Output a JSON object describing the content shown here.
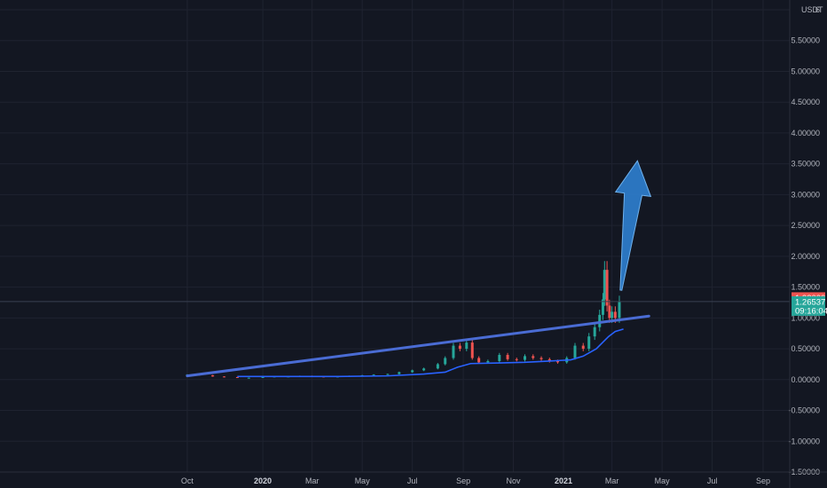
{
  "chart_data": {
    "type": "line",
    "price_axis": {
      "unit_label": "USDT",
      "tick_labels": [
        "6",
        "5.50000",
        "5.00000",
        "4.50000",
        "4.00000",
        "3.50000",
        "3.00000",
        "2.50000",
        "2.00000",
        "1.50000",
        "1.00000",
        "0.50000",
        "0.00000",
        "-0.50000",
        "-1.00000",
        "-1.50000"
      ],
      "ylim": [
        -1.5,
        6
      ]
    },
    "time_axis": {
      "tick_labels": [
        {
          "label": "Oct",
          "date": "2019-10",
          "bold": false
        },
        {
          "label": "2020",
          "date": "2020-01",
          "bold": true
        },
        {
          "label": "Mar",
          "date": "2020-03",
          "bold": false
        },
        {
          "label": "May",
          "date": "2020-05",
          "bold": false
        },
        {
          "label": "Jul",
          "date": "2020-07",
          "bold": false
        },
        {
          "label": "Sep",
          "date": "2020-09",
          "bold": false
        },
        {
          "label": "Nov",
          "date": "2020-11",
          "bold": false
        },
        {
          "label": "2021",
          "date": "2021-01",
          "bold": true
        },
        {
          "label": "Mar",
          "date": "2021-03",
          "bold": false
        },
        {
          "label": "May",
          "date": "2021-05",
          "bold": false
        },
        {
          "label": "Jul",
          "date": "2021-07",
          "bold": false
        },
        {
          "label": "Sep",
          "date": "2021-09",
          "bold": false
        }
      ]
    },
    "series": [
      {
        "type": "candles",
        "points": [
          [
            "2019-10-01",
            0.08
          ],
          [
            "2019-10-15",
            0.07
          ],
          [
            "2019-11-01",
            0.05
          ],
          [
            "2019-11-15",
            0.04
          ],
          [
            "2019-12-01",
            0.03
          ],
          [
            "2019-12-15",
            0.03
          ],
          [
            "2020-01-01",
            0.04
          ],
          [
            "2020-01-15",
            0.05
          ],
          [
            "2020-02-01",
            0.05
          ],
          [
            "2020-02-15",
            0.06
          ],
          [
            "2020-03-01",
            0.05
          ],
          [
            "2020-03-15",
            0.04
          ],
          [
            "2020-04-01",
            0.05
          ],
          [
            "2020-04-15",
            0.06
          ],
          [
            "2020-05-01",
            0.07
          ],
          [
            "2020-05-15",
            0.08
          ],
          [
            "2020-06-01",
            0.09
          ],
          [
            "2020-06-15",
            0.12
          ],
          [
            "2020-07-01",
            0.15
          ],
          [
            "2020-07-15",
            0.18
          ],
          [
            "2020-08-01",
            0.25
          ],
          [
            "2020-08-10",
            0.35
          ],
          [
            "2020-08-20",
            0.55
          ],
          [
            "2020-08-28",
            0.5
          ],
          [
            "2020-09-05",
            0.6
          ],
          [
            "2020-09-12",
            0.35
          ],
          [
            "2020-09-20",
            0.28
          ],
          [
            "2020-10-01",
            0.3
          ],
          [
            "2020-10-15",
            0.4
          ],
          [
            "2020-10-25",
            0.33
          ],
          [
            "2020-11-05",
            0.32
          ],
          [
            "2020-11-15",
            0.38
          ],
          [
            "2020-11-25",
            0.35
          ],
          [
            "2020-12-05",
            0.33
          ],
          [
            "2020-12-15",
            0.3
          ],
          [
            "2020-12-25",
            0.28
          ],
          [
            "2021-01-05",
            0.35
          ],
          [
            "2021-01-15",
            0.55
          ],
          [
            "2021-01-25",
            0.5
          ],
          [
            "2021-02-01",
            0.7
          ],
          [
            "2021-02-08",
            0.85
          ],
          [
            "2021-02-14",
            1.05
          ],
          [
            "2021-02-18",
            1.3
          ],
          [
            "2021-02-20",
            1.78
          ],
          [
            "2021-02-23",
            1.2
          ],
          [
            "2021-02-26",
            1.0
          ],
          [
            "2021-03-01",
            1.1
          ],
          [
            "2021-03-05",
            1.0
          ],
          [
            "2021-03-10",
            1.26
          ]
        ]
      },
      {
        "type": "moving-average",
        "points": [
          [
            "2019-12-01",
            0.05
          ],
          [
            "2020-02-01",
            0.05
          ],
          [
            "2020-04-01",
            0.05
          ],
          [
            "2020-06-01",
            0.06
          ],
          [
            "2020-07-15",
            0.09
          ],
          [
            "2020-08-10",
            0.12
          ],
          [
            "2020-08-25",
            0.2
          ],
          [
            "2020-09-10",
            0.26
          ],
          [
            "2020-10-15",
            0.27
          ],
          [
            "2020-11-15",
            0.28
          ],
          [
            "2020-12-15",
            0.3
          ],
          [
            "2021-01-10",
            0.32
          ],
          [
            "2021-01-25",
            0.38
          ],
          [
            "2021-02-10",
            0.5
          ],
          [
            "2021-02-25",
            0.7
          ],
          [
            "2021-03-05",
            0.78
          ],
          [
            "2021-03-15",
            0.82
          ]
        ]
      }
    ],
    "trendline": {
      "from": [
        "2019-10-01",
        0.06
      ],
      "to": [
        "2021-04-15",
        1.03
      ],
      "color": "#4a6cd4"
    },
    "arrow": {
      "from": [
        "2021-03-12",
        1.45
      ],
      "to": [
        "2021-04-01",
        3.55
      ],
      "color": "#2f7fd0"
    },
    "current_price": {
      "value": "1.26537",
      "countdown": "09:16:04",
      "y": 1.26537,
      "color": "#26a69a"
    },
    "last_high_tag": {
      "value": "1.33000",
      "y": 1.33,
      "color": "#ef5350"
    },
    "grid": true,
    "colors": {
      "background": "#131722",
      "grid": "#1f2330",
      "up": "#26a69a",
      "down": "#ef5350",
      "ma": "#2962ff"
    }
  }
}
